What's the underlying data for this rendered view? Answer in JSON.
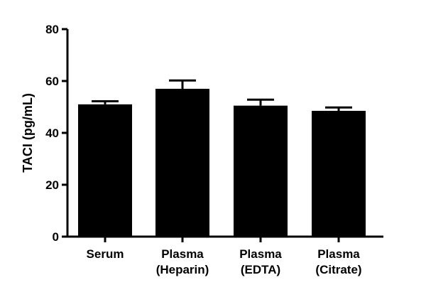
{
  "chart_data": {
    "type": "bar",
    "title": "",
    "xlabel": "",
    "ylabel": "TACI (pg/mL)",
    "ylim": [
      0,
      80
    ],
    "yticks": [
      0,
      20,
      40,
      60,
      80
    ],
    "grid": false,
    "bar_color": "#000000",
    "categories": [
      [
        "Serum"
      ],
      [
        "Plasma",
        "(Heparin)"
      ],
      [
        "Plasma",
        "(EDTA)"
      ],
      [
        "Plasma",
        "(Citrate)"
      ]
    ],
    "values": [
      51,
      57,
      50.5,
      48.5
    ],
    "errors": [
      1.2,
      3.2,
      2.3,
      1.3
    ]
  }
}
